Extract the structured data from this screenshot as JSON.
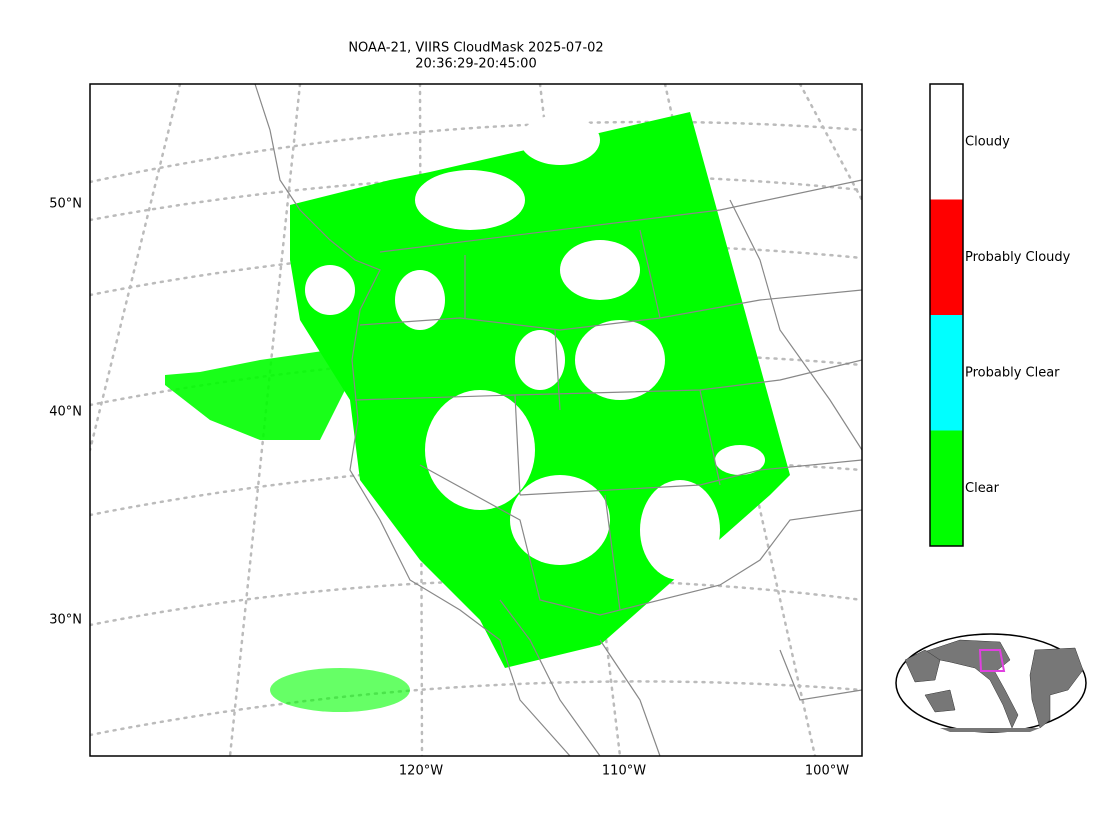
{
  "title": [
    "NOAA-21, VIIRS CloudMask 2025-07-02",
    "20:36:29-20:45:00"
  ],
  "lat_labels": [
    "50°N",
    "40°N",
    "30°N"
  ],
  "lon_labels": [
    "120°W",
    "110°W",
    "100°W"
  ],
  "legend": [
    {
      "label": "Cloudy",
      "color": "#ffffff"
    },
    {
      "label": "Probably Cloudy",
      "color": "#ff0000"
    },
    {
      "label": "Probably Clear",
      "color": "#00ffff"
    },
    {
      "label": "Clear",
      "color": "#00ff00"
    }
  ]
}
